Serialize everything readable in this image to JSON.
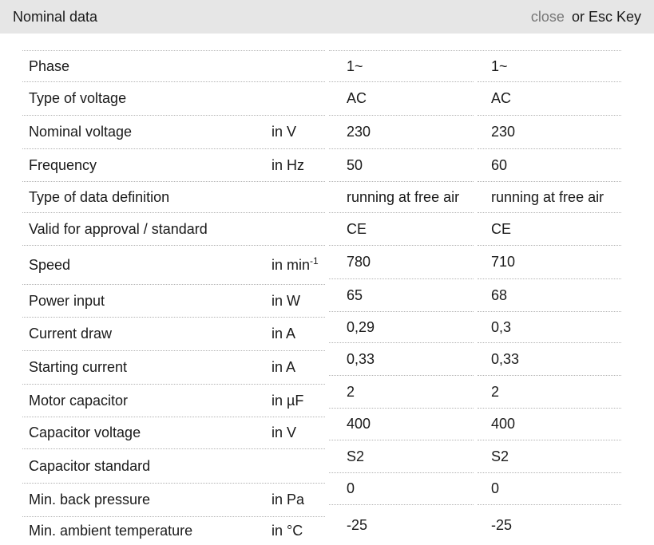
{
  "titlebar": {
    "title": "Nominal data",
    "close_link": "close",
    "close_suffix": "or Esc Key"
  },
  "colors": {
    "titlebar_bg": "#e6e6e6",
    "close_link_color": "#777777",
    "text_color": "#1a1a1a",
    "divider_color": "#b3b3b3"
  },
  "table": {
    "rows": [
      {
        "label": "Phase",
        "unit": "",
        "unit_sup": "",
        "values": [
          "1~",
          "1~"
        ]
      },
      {
        "label": "Type of voltage",
        "unit": "",
        "unit_sup": "",
        "values": [
          "AC",
          "AC"
        ]
      },
      {
        "label": "Nominal voltage",
        "unit": "in V",
        "unit_sup": "",
        "values": [
          "230",
          "230"
        ]
      },
      {
        "label": "Frequency",
        "unit": "in Hz",
        "unit_sup": "",
        "values": [
          "50",
          "60"
        ]
      },
      {
        "label": "Type of data definition",
        "unit": "",
        "unit_sup": "",
        "values": [
          "running at free air",
          "running at free air"
        ]
      },
      {
        "label": "Valid for approval / standard",
        "unit": "",
        "unit_sup": "",
        "values": [
          "CE",
          "CE"
        ]
      },
      {
        "label": "Speed",
        "unit": "in min",
        "unit_sup": "-1",
        "values": [
          "780",
          "710"
        ]
      },
      {
        "label": "Power input",
        "unit": "in W",
        "unit_sup": "",
        "values": [
          "65",
          "68"
        ]
      },
      {
        "label": "Current draw",
        "unit": "in A",
        "unit_sup": "",
        "values": [
          "0,29",
          "0,3"
        ]
      },
      {
        "label": "Starting current",
        "unit": "in A",
        "unit_sup": "",
        "values": [
          "0,33",
          "0,33"
        ]
      },
      {
        "label": "Motor capacitor",
        "unit": "in µF",
        "unit_sup": "",
        "values": [
          "2",
          "2"
        ]
      },
      {
        "label": "Capacitor voltage",
        "unit": "in V",
        "unit_sup": "",
        "values": [
          "400",
          "400"
        ]
      },
      {
        "label": "Capacitor standard",
        "unit": "",
        "unit_sup": "",
        "values": [
          "S2",
          "S2"
        ]
      },
      {
        "label": "Min. back pressure",
        "unit": "in Pa",
        "unit_sup": "",
        "values": [
          "0",
          "0"
        ]
      },
      {
        "label": "Min. ambient temperature",
        "unit": "in °C",
        "unit_sup": "",
        "values": [
          "-25",
          "-25"
        ]
      }
    ]
  }
}
